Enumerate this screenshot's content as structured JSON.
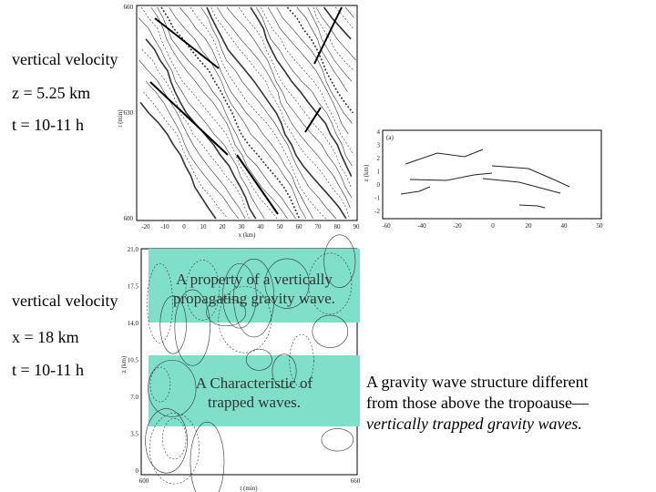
{
  "labels_top": [
    "vertical velocity",
    "z = 5.25 km",
    "t = 10-11 h"
  ],
  "labels_bottom": [
    "vertical velocity",
    "x = 18 km",
    "t = 10-11 h"
  ],
  "caption_upper": [
    "A property of a vertically",
    "propagating gravity wave."
  ],
  "caption_lower": [
    "A Characteristic of",
    "trapped waves."
  ],
  "note": {
    "lines": [
      "A gravity wave structure different",
      "from those above the tropoause—"
    ],
    "emphasis": "vertically trapped gravity waves."
  },
  "fig_top": {
    "yticks": [
      "660",
      "630",
      "600"
    ],
    "xticks": [
      "-20",
      "-10",
      "0",
      "10",
      "20",
      "30",
      "40",
      "50",
      "60",
      "70",
      "80",
      "90"
    ],
    "xlabel": "x (km)",
    "ylabel": "t (min)"
  },
  "fig_right": {
    "panel": "(a)",
    "yticks": [
      "4",
      "3",
      "2",
      "1",
      "0",
      "-1",
      "-2"
    ],
    "xticks": [
      "-60",
      "-40",
      "-20",
      "0",
      "20",
      "40",
      "50"
    ],
    "ylabel": "z (km)"
  },
  "fig_bottom": {
    "yticks": [
      "21.0",
      "17.5",
      "14.0",
      "10.5",
      "7.0",
      "3.5",
      "0"
    ],
    "xticks": [
      "600",
      "660"
    ],
    "xlabel": "t (min)",
    "ylabel": "z (km)"
  }
}
